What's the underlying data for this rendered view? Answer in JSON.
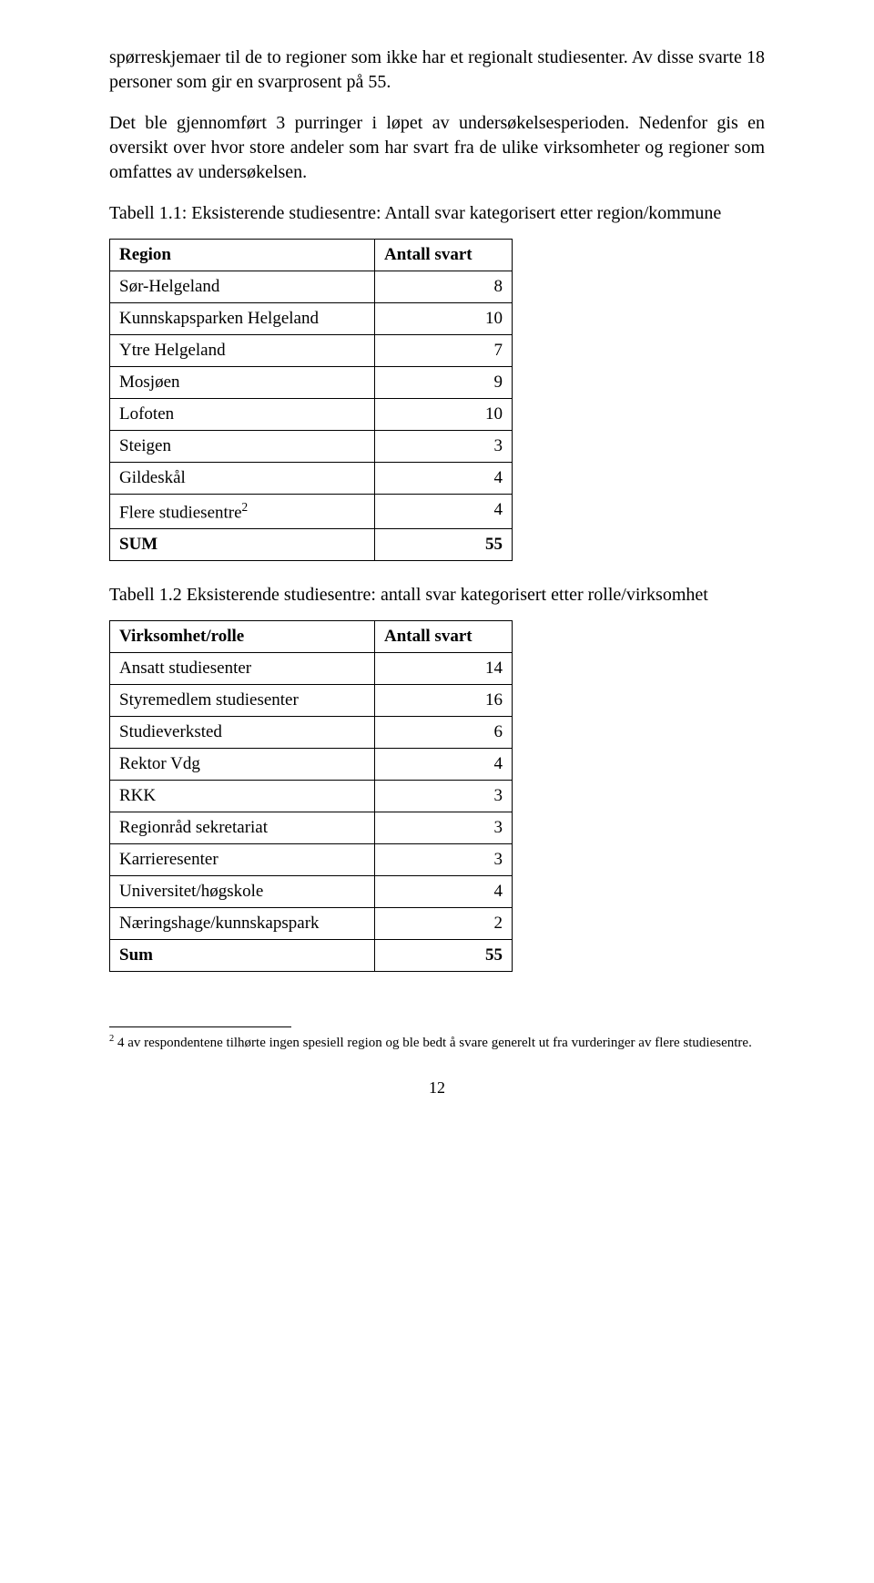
{
  "para1": "spørreskjemaer til de to regioner som ikke har et regionalt studiesenter. Av disse svarte 18 personer som gir en svarprosent på 55.",
  "para2": "Det ble gjennomført 3 purringer i løpet av undersøkelsesperioden. Nedenfor gis en oversikt over hvor store andeler som har svart fra de ulike virksomheter og regioner som omfattes av undersøkelsen.",
  "table1": {
    "caption": "Tabell 1.1: Eksisterende studiesentre: Antall svar kategorisert etter region/kommune",
    "header_label": "Region",
    "header_value": "Antall svart",
    "rows": [
      {
        "label": "Sør-Helgeland",
        "value": "8"
      },
      {
        "label": "Kunnskapsparken Helgeland",
        "value": "10"
      },
      {
        "label": "Ytre Helgeland",
        "value": "7"
      },
      {
        "label": "Mosjøen",
        "value": "9"
      },
      {
        "label": "Lofoten",
        "value": "10"
      },
      {
        "label": "Steigen",
        "value": "3"
      },
      {
        "label": "Gildeskål",
        "value": "4"
      }
    ],
    "fn_row": {
      "label_prefix": "Flere studiesentre",
      "fn_mark": "2",
      "value": "4"
    },
    "sum": {
      "label": "SUM",
      "value": "55"
    }
  },
  "table2": {
    "caption": "Tabell 1.2 Eksisterende studiesentre: antall svar kategorisert etter rolle/virksomhet",
    "header_label": "Virksomhet/rolle",
    "header_value": "Antall svart",
    "rows": [
      {
        "label": "Ansatt studiesenter",
        "value": "14"
      },
      {
        "label": "Styremedlem studiesenter",
        "value": "16"
      },
      {
        "label": "Studieverksted",
        "value": "6"
      },
      {
        "label": "Rektor Vdg",
        "value": "4"
      },
      {
        "label": "RKK",
        "value": "3"
      },
      {
        "label": "Regionråd sekretariat",
        "value": "3"
      },
      {
        "label": "Karrieresenter",
        "value": "3"
      },
      {
        "label": "Universitet/høgskole",
        "value": "4"
      },
      {
        "label": "Næringshage/kunnskapspark",
        "value": "2"
      }
    ],
    "sum": {
      "label": "Sum",
      "value": "55"
    }
  },
  "footnote": {
    "mark": "2",
    "text": " 4 av respondentene tilhørte ingen spesiell region og ble bedt å svare generelt ut fra vurderinger av flere studiesentre."
  },
  "pagenum": "12"
}
